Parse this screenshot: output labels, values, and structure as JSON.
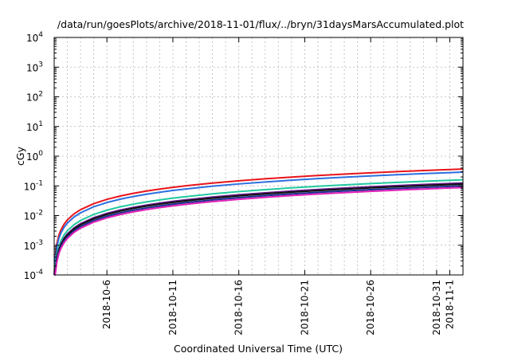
{
  "chart_data": {
    "type": "line",
    "title": "/data/run/goesPlots/archive/2018-11-01/flux/../bryn/31daysMarsAccumulated.plot",
    "xlabel": "Coordinated Universal Time (UTC)",
    "ylabel": "cGy",
    "y_scale": "log",
    "ylim": [
      0.0001,
      10000
    ],
    "y_ticks": [
      {
        "value": 0.0001,
        "base": "10",
        "exp": "-4"
      },
      {
        "value": 0.001,
        "base": "10",
        "exp": "-3"
      },
      {
        "value": 0.01,
        "base": "10",
        "exp": "-2"
      },
      {
        "value": 0.1,
        "base": "10",
        "exp": "-1"
      },
      {
        "value": 1,
        "base": "10",
        "exp": "0"
      },
      {
        "value": 10,
        "base": "10",
        "exp": "1"
      },
      {
        "value": 100,
        "base": "10",
        "exp": "2"
      },
      {
        "value": 1000,
        "base": "10",
        "exp": "3"
      },
      {
        "value": 10000,
        "base": "10",
        "exp": "4"
      }
    ],
    "x_unit": "days from 2018-10-02",
    "xlim": [
      0,
      31
    ],
    "x_ticks": [
      {
        "value": 4,
        "label": "2018-10-6"
      },
      {
        "value": 9,
        "label": "2018-10-11"
      },
      {
        "value": 14,
        "label": "2018-10-16"
      },
      {
        "value": 19,
        "label": "2018-10-21"
      },
      {
        "value": 24,
        "label": "2018-10-26"
      },
      {
        "value": 29,
        "label": "2018-10-31"
      },
      {
        "value": 30,
        "label": "2018-11-1"
      }
    ],
    "x_grid": [
      0,
      1,
      2,
      3,
      4,
      5,
      6,
      7,
      8,
      9,
      10,
      11,
      12,
      13,
      14,
      15,
      16,
      17,
      18,
      19,
      20,
      21,
      22,
      23,
      24,
      25,
      26,
      27,
      28,
      29,
      30,
      31
    ],
    "grid": true,
    "x_points": [
      0,
      0.05,
      0.1,
      0.2,
      0.35,
      0.5,
      0.75,
      1,
      1.5,
      2,
      3,
      4,
      5,
      6,
      7,
      8,
      9,
      10,
      12,
      14,
      16,
      18,
      20,
      22,
      24,
      26,
      28,
      30,
      31
    ],
    "series": [
      {
        "color": "#e8141b",
        "width": 2.0,
        "end_value": 0.37
      },
      {
        "color": "#2c6fe0",
        "width": 2.0,
        "end_value": 0.29
      },
      {
        "color": "#22c8a0",
        "width": 2.0,
        "end_value": 0.16
      },
      {
        "color": "#6a1a8c",
        "width": 2.0,
        "end_value": 0.125
      },
      {
        "color": "#101010",
        "width": 2.0,
        "end_value": 0.115
      },
      {
        "color": "#1a2a8c",
        "width": 2.0,
        "end_value": 0.1
      },
      {
        "color": "#e020b8",
        "width": 2.0,
        "end_value": 0.088
      }
    ]
  }
}
